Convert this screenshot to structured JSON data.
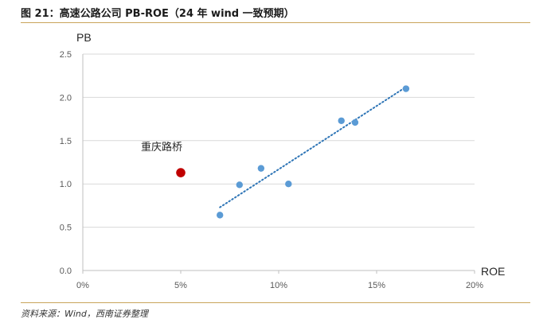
{
  "figure": {
    "title": "图 21：高速公路公司 PB-ROE（24 年 wind 一致预期）",
    "source": "资料来源：Wind，西南证券整理"
  },
  "colors": {
    "points": "#5b9bd5",
    "highlight": "#c00000",
    "trendline": "#2e75b6",
    "rule": "#c9a45a"
  },
  "chart_data": {
    "type": "scatter",
    "title": "",
    "xlabel": "ROE",
    "ylabel": "PB",
    "xlim": [
      0,
      0.2
    ],
    "ylim": [
      0,
      2.5
    ],
    "xticks": [
      0,
      0.05,
      0.1,
      0.15,
      0.2
    ],
    "xtick_labels": [
      "0%",
      "5%",
      "10%",
      "15%",
      "20%"
    ],
    "yticks": [
      0,
      0.5,
      1.0,
      1.5,
      2.0,
      2.5
    ],
    "ytick_labels": [
      "0.0",
      "0.5",
      "1.0",
      "1.5",
      "2.0",
      "2.5"
    ],
    "grid": "horizontal",
    "legend": "none",
    "series": [
      {
        "points": [
          {
            "x": 0.07,
            "y": 0.64
          },
          {
            "x": 0.08,
            "y": 0.99
          },
          {
            "x": 0.091,
            "y": 1.18
          },
          {
            "x": 0.105,
            "y": 1.0
          },
          {
            "x": 0.132,
            "y": 1.73
          },
          {
            "x": 0.139,
            "y": 1.71
          },
          {
            "x": 0.165,
            "y": 2.1
          }
        ]
      }
    ],
    "highlight": {
      "label": "重庆路桥",
      "x": 0.05,
      "y": 1.13
    },
    "trendline": {
      "x": [
        0.07,
        0.165
      ],
      "y": [
        0.73,
        2.12
      ]
    }
  }
}
